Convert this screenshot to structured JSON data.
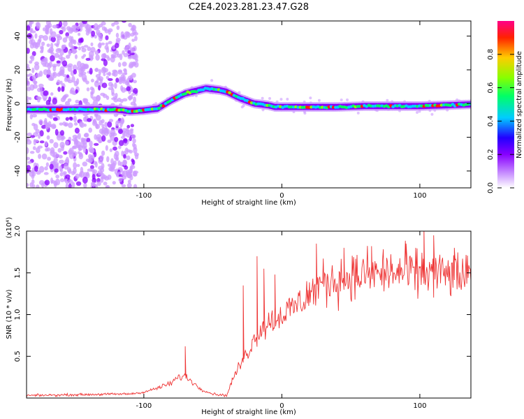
{
  "title": "C2E4.2023.281.23.47.G28",
  "colors": {
    "snr_line": "#ee3333",
    "axis": "#000000",
    "colormap": [
      "#ffffff",
      "#cc99ff",
      "#8800ff",
      "#2200ff",
      "#00ccff",
      "#00ff66",
      "#88ff00",
      "#ffcc00",
      "#ff2200",
      "#ff0088"
    ]
  },
  "chart_data": [
    {
      "type": "heatmap",
      "title": "C2E4.2023.281.23.47.G28",
      "xlabel": "Height of straight line (km)",
      "ylabel": "Frequency (Hz)",
      "xlim": [
        -185,
        137
      ],
      "ylim": [
        -50,
        49
      ],
      "x_ticks": [
        -100,
        0,
        100
      ],
      "x_tick_labels": [
        "-100",
        "0",
        "100"
      ],
      "y_ticks": [
        -40,
        -20,
        0,
        20,
        40
      ],
      "y_tick_labels": [
        "-40",
        "-20",
        "0",
        "20",
        "40"
      ],
      "colorbar": {
        "label": "Normalized spectral amplitude",
        "range": [
          0,
          1
        ],
        "ticks": [
          0.0,
          0.2,
          0.4,
          0.6,
          0.8
        ],
        "tick_labels": [
          "0.0",
          "0.2",
          "0.4",
          "0.6",
          "0.8"
        ]
      },
      "ridge": {
        "x": [
          -175,
          -160,
          -140,
          -120,
          -110,
          -100,
          -90,
          -80,
          -70,
          -60,
          -55,
          -50,
          -45,
          -40,
          -35,
          -30,
          -25,
          -20,
          -15,
          -10,
          -5,
          0,
          10,
          20,
          40,
          60,
          80,
          100,
          120,
          137
        ],
        "freq": [
          -3.5,
          -3.5,
          -3.5,
          -3.5,
          -4.5,
          -4,
          -3,
          2,
          6,
          8,
          9,
          8.5,
          8,
          7,
          5,
          3,
          1.5,
          0,
          -0.5,
          -1,
          -2,
          -2,
          -2,
          -2,
          -2,
          -1.5,
          -1.5,
          -1.5,
          -1,
          -0.5
        ]
      }
    },
    {
      "type": "line",
      "xlabel": "Height of straight line (km)",
      "ylabel": "SNR (10 * v/v)",
      "y_multiplier_label": "(x10⁴)",
      "xlim": [
        -185,
        137
      ],
      "ylim": [
        0,
        2.0
      ],
      "x_ticks": [
        -100,
        0,
        100
      ],
      "x_tick_labels": [
        "-100",
        "0",
        "100"
      ],
      "y_ticks": [
        0.5,
        1.0,
        1.5,
        2.0
      ],
      "y_tick_labels": [
        "0.5",
        "1.0",
        "1.5",
        "2.0"
      ],
      "trend": {
        "x": [
          -185,
          -150,
          -110,
          -100,
          -90,
          -80,
          -75,
          -70,
          -65,
          -60,
          -55,
          -50,
          -40,
          -35,
          -30,
          -25,
          -20,
          -15,
          -10,
          -5,
          0,
          10,
          20,
          30,
          50,
          70,
          90,
          110,
          137
        ],
        "y": [
          0.03,
          0.04,
          0.05,
          0.07,
          0.12,
          0.18,
          0.25,
          0.26,
          0.2,
          0.12,
          0.08,
          0.05,
          0.03,
          0.25,
          0.4,
          0.55,
          0.7,
          0.85,
          0.9,
          0.95,
          1.0,
          1.1,
          1.25,
          1.38,
          1.45,
          1.5,
          1.5,
          1.5,
          1.45
        ]
      },
      "spikes": {
        "x": [
          -70,
          -28,
          -18,
          -13,
          -5,
          25,
          45,
          65,
          90,
          103,
          110,
          125
        ],
        "y": [
          0.62,
          1.35,
          1.7,
          1.55,
          1.48,
          1.85,
          1.8,
          1.82,
          1.85,
          2.05,
          1.95,
          1.8
        ]
      }
    }
  ]
}
